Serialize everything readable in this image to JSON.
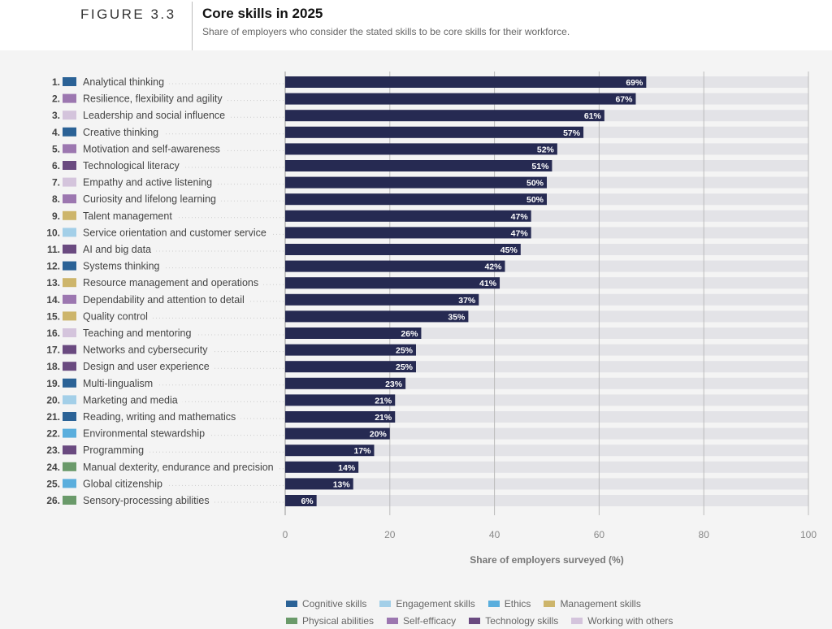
{
  "header": {
    "figure": "FIGURE 3.3",
    "title": "Core skills in 2025",
    "subtitle": "Share of employers who consider the stated skills to be core skills for their workforce."
  },
  "chart_data": {
    "type": "bar",
    "orientation": "horizontal",
    "xlabel": "Share of employers surveyed (%)",
    "xlim": [
      0,
      100
    ],
    "xticks": [
      "0",
      "20",
      "40",
      "60",
      "80",
      "100"
    ],
    "grid": true,
    "legend_placement": "bottom",
    "bar_color": "#262a52",
    "track_color": "#e3e3e7",
    "categories": [
      "Analytical thinking",
      "Resilience, flexibility and agility",
      "Leadership and social influence",
      "Creative thinking",
      "Motivation and self-awareness",
      "Technological literacy",
      "Empathy and active listening",
      "Curiosity and lifelong learning",
      "Talent management",
      "Service orientation and customer service",
      "AI and big data",
      "Systems thinking",
      "Resource management and operations",
      "Dependability and attention to detail",
      "Quality control",
      "Teaching and mentoring",
      "Networks and cybersecurity",
      "Design and user experience",
      "Multi-lingualism",
      "Marketing and media",
      "Reading, writing and mathematics",
      "Environmental stewardship",
      "Programming",
      "Manual dexterity, endurance and precision",
      "Global citizenship",
      "Sensory-processing abilities"
    ],
    "ranks": [
      "1.",
      "2.",
      "3.",
      "4.",
      "5.",
      "6.",
      "7.",
      "8.",
      "9.",
      "10.",
      "11.",
      "12.",
      "13.",
      "14.",
      "15.",
      "16.",
      "17.",
      "18.",
      "19.",
      "20.",
      "21.",
      "22.",
      "23.",
      "24.",
      "25.",
      "26."
    ],
    "values": [
      69,
      67,
      61,
      57,
      52,
      51,
      50,
      50,
      47,
      47,
      45,
      42,
      41,
      37,
      35,
      26,
      25,
      25,
      23,
      21,
      21,
      20,
      17,
      14,
      13,
      6
    ],
    "value_labels": [
      "69%",
      "67%",
      "61%",
      "57%",
      "52%",
      "51%",
      "50%",
      "50%",
      "47%",
      "47%",
      "45%",
      "42%",
      "41%",
      "37%",
      "35%",
      "26%",
      "25%",
      "25%",
      "23%",
      "21%",
      "21%",
      "20%",
      "17%",
      "14%",
      "13%",
      "6%"
    ],
    "skill_groups": [
      "cognitive",
      "self",
      "working",
      "cognitive",
      "self",
      "tech",
      "working",
      "self",
      "management",
      "engagement",
      "tech",
      "cognitive",
      "management",
      "self",
      "management",
      "working",
      "tech",
      "tech",
      "cognitive",
      "engagement",
      "cognitive",
      "ethics",
      "tech",
      "physical",
      "ethics",
      "physical"
    ],
    "legend": [
      {
        "key": "cognitive",
        "label": "Cognitive skills",
        "color": "#2b6296"
      },
      {
        "key": "engagement",
        "label": "Engagement skills",
        "color": "#a3cfe8"
      },
      {
        "key": "ethics",
        "label": "Ethics",
        "color": "#5aaedd"
      },
      {
        "key": "management",
        "label": "Management skills",
        "color": "#cdb56b"
      },
      {
        "key": "physical",
        "label": "Physical abilities",
        "color": "#6a9a6a"
      },
      {
        "key": "self",
        "label": "Self-efficacy",
        "color": "#9c77b0"
      },
      {
        "key": "tech",
        "label": "Technology skills",
        "color": "#6a4a80"
      },
      {
        "key": "working",
        "label": "Working with others",
        "color": "#d4c4dc"
      }
    ]
  }
}
